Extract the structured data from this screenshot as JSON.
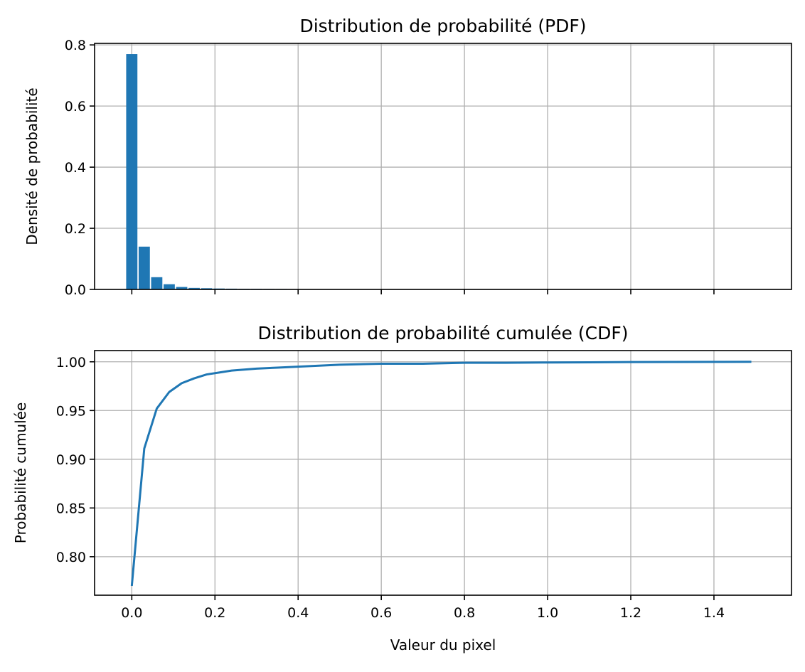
{
  "colors": {
    "series": "#1f77b4",
    "grid": "#b0b0b0",
    "axis": "#000000"
  },
  "chart_data": [
    {
      "type": "bar",
      "title": "Distribution de probabilité (PDF)",
      "xlabel": "",
      "ylabel": "Densité de probabilité",
      "xlim": [
        -0.0895,
        1.5865
      ],
      "ylim": [
        0,
        0.805
      ],
      "grid": true,
      "bar_width": 0.027,
      "x": [
        0.0,
        0.03,
        0.06,
        0.09,
        0.12,
        0.15,
        0.18,
        0.21,
        0.24,
        0.27,
        0.3,
        0.33,
        0.36,
        0.39,
        0.42,
        0.45,
        0.48,
        0.51,
        0.54,
        0.57,
        0.6,
        0.63,
        0.66,
        0.69,
        0.72,
        0.75,
        0.78,
        0.81,
        0.84,
        0.87,
        0.9,
        0.93,
        0.96,
        0.99,
        1.02,
        1.05,
        1.08,
        1.11,
        1.14,
        1.17,
        1.2,
        1.23,
        1.26,
        1.29,
        1.32,
        1.35,
        1.38,
        1.41,
        1.44,
        1.47
      ],
      "values": [
        0.77,
        0.14,
        0.04,
        0.017,
        0.008,
        0.005,
        0.004,
        0.003,
        0.0025,
        0.002,
        0.0018,
        0.0016,
        0.0014,
        0.0012,
        0.0011,
        0.001,
        0.0009,
        0.0008,
        0.0007,
        0.0006,
        0.0005,
        0.0005,
        0.0004,
        0.0004,
        0.0003,
        0.0003,
        0.0003,
        0.0003,
        0.0002,
        0.0002,
        0.0002,
        0.0002,
        0.0002,
        0.0002,
        0.0001,
        0.0001,
        0.0001,
        0.0001,
        0.0001,
        0.0001,
        0.0001,
        0.0001,
        0.0001,
        0.0001,
        0.0001,
        0.0001,
        0.0001,
        0.0001,
        0.0001,
        0.0001
      ],
      "yticks": [
        "0.0",
        "0.2",
        "0.4",
        "0.6",
        "0.8"
      ],
      "ytick_values": [
        0,
        0.2,
        0.4,
        0.6,
        0.8
      ]
    },
    {
      "type": "line",
      "title": "Distribution de probabilité cumulée (CDF)",
      "xlabel": "Valeur du pixel",
      "ylabel": "Probabilité cumulée",
      "xlim": [
        -0.0895,
        1.5865
      ],
      "ylim": [
        0.7605,
        1.0115
      ],
      "grid": true,
      "x": [
        0.0,
        0.03,
        0.06,
        0.09,
        0.12,
        0.15,
        0.18,
        0.21,
        0.24,
        0.27,
        0.3,
        0.35,
        0.4,
        0.5,
        0.6,
        0.7,
        0.8,
        0.9,
        1.0,
        1.1,
        1.2,
        1.3,
        1.4,
        1.49
      ],
      "y": [
        0.77,
        0.911,
        0.952,
        0.969,
        0.978,
        0.983,
        0.987,
        0.989,
        0.991,
        0.992,
        0.993,
        0.994,
        0.995,
        0.997,
        0.998,
        0.998,
        0.999,
        0.999,
        0.9993,
        0.9995,
        0.9997,
        0.9998,
        0.9999,
        1.0
      ],
      "xticks": [
        "0.0",
        "0.2",
        "0.4",
        "0.6",
        "0.8",
        "1.0",
        "1.2",
        "1.4"
      ],
      "xtick_values": [
        0,
        0.2,
        0.4,
        0.6,
        0.8,
        1.0,
        1.2,
        1.4
      ],
      "yticks": [
        "0.80",
        "0.85",
        "0.90",
        "0.95",
        "1.00"
      ],
      "ytick_values": [
        0.8,
        0.85,
        0.9,
        0.95,
        1.0
      ]
    }
  ]
}
